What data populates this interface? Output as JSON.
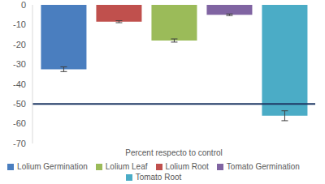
{
  "chart_data": {
    "type": "bar",
    "categories": [
      "Percent respecto to control"
    ],
    "series": [
      {
        "name": "Lolium Germination",
        "color": "#4a7ebf",
        "values": [
          -32.5
        ],
        "errors": [
          1.2
        ]
      },
      {
        "name": "Lolium Root",
        "color": "#c0504d",
        "values": [
          -8.5
        ],
        "errors": [
          0.5
        ]
      },
      {
        "name": "Lolium Leaf",
        "color": "#9bbb59",
        "values": [
          -18
        ],
        "errors": [
          0.8
        ]
      },
      {
        "name": "Tomato Germination",
        "color": "#8064a2",
        "values": [
          -5
        ],
        "errors": [
          0.4
        ]
      },
      {
        "name": "Tomato Root",
        "color": "#4bacc6",
        "values": [
          -56
        ],
        "errors": [
          2.5
        ]
      }
    ],
    "ylim": [
      -70,
      0
    ],
    "yticks": [
      -70,
      -60,
      -50,
      -40,
      -30,
      -20,
      -10,
      0
    ],
    "reference_line": {
      "value": -50,
      "color": "#1f3864"
    },
    "grid": false,
    "legend": "bottom"
  }
}
